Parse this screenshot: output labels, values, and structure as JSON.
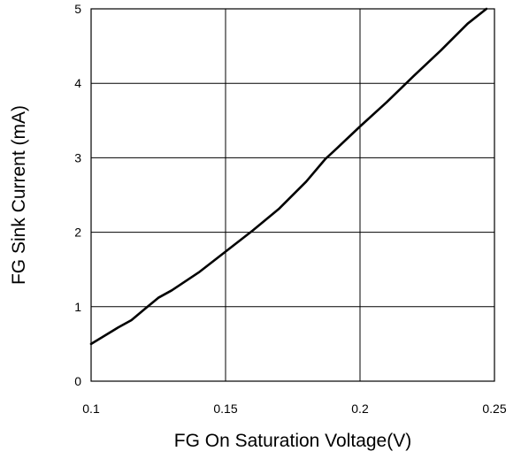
{
  "chart_data": {
    "type": "line",
    "title": "",
    "xlabel": "FG On Saturation Voltage(V)",
    "ylabel": "FG Sink Current  (mA)",
    "xlim": [
      0.1,
      0.25
    ],
    "ylim": [
      0,
      5
    ],
    "grid": true,
    "x_ticks": [
      0.1,
      0.15,
      0.2,
      0.25
    ],
    "x_tick_labels": [
      "0.1",
      "0.15",
      "0.2",
      "0.25"
    ],
    "y_ticks": [
      0,
      1,
      2,
      3,
      4,
      5
    ],
    "y_tick_labels": [
      "0",
      "1",
      "2",
      "3",
      "4",
      "5"
    ],
    "line_color": "#000000",
    "series": [
      {
        "x": [
          0.1,
          0.11,
          0.115,
          0.12,
          0.125,
          0.13,
          0.14,
          0.15,
          0.16,
          0.17,
          0.18,
          0.187,
          0.19,
          0.2,
          0.21,
          0.22,
          0.23,
          0.24,
          0.247
        ],
        "y": [
          0.5,
          0.72,
          0.82,
          0.97,
          1.12,
          1.22,
          1.46,
          1.74,
          2.02,
          2.32,
          2.68,
          2.98,
          3.08,
          3.42,
          3.75,
          4.1,
          4.44,
          4.8,
          5.0
        ]
      }
    ]
  }
}
